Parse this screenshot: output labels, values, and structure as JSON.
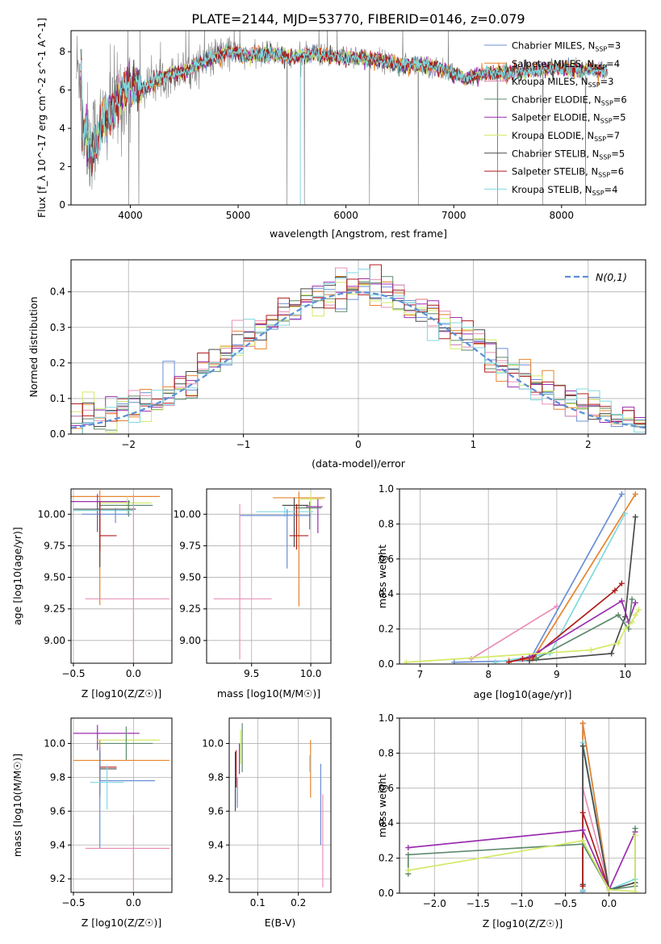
{
  "figure_title": "PLATE=2144, MJD=53770, FIBERID=0146, z=0.079",
  "colors": {
    "chab_miles": "#6a8fd6",
    "salp_miles": "#e8842c",
    "krou_miles": "#e98fb8",
    "chab_elodie": "#5f8a6e",
    "salp_elodie": "#9b2fae",
    "krou_elodie": "#d2ea68",
    "chab_stelib": "#4a4a4a",
    "salp_stelib": "#b01c1c",
    "krou_stelib": "#7fd8e0",
    "data": "#808080",
    "normal": "#5b8fd6"
  },
  "chart_data": [
    {
      "id": "spectrum",
      "type": "line",
      "xlabel": "wavelength [Angstrom, rest frame]",
      "ylabel": "Flux [f_λ 10^-17 erg cm^-2 s^-1 A^-1]",
      "xlim": [
        3450,
        8780
      ],
      "ylim": [
        0,
        9.1
      ],
      "xticks": [
        4000,
        5000,
        6000,
        7000,
        8000
      ],
      "yticks": [
        0,
        2,
        4,
        6,
        8
      ],
      "continuum": [
        [
          3550,
          4.1
        ],
        [
          3650,
          3.4
        ],
        [
          3800,
          4.8
        ],
        [
          3900,
          5.6
        ],
        [
          4000,
          6.3
        ],
        [
          4100,
          6.0
        ],
        [
          4300,
          6.7
        ],
        [
          4500,
          7.0
        ],
        [
          4700,
          7.5
        ],
        [
          4900,
          8.0
        ],
        [
          5100,
          7.8
        ],
        [
          5300,
          7.9
        ],
        [
          5500,
          7.7
        ],
        [
          5700,
          7.9
        ],
        [
          5900,
          7.7
        ],
        [
          6100,
          7.7
        ],
        [
          6300,
          7.6
        ],
        [
          6500,
          7.3
        ],
        [
          6700,
          7.3
        ],
        [
          6900,
          7.1
        ],
        [
          7100,
          6.6
        ],
        [
          7300,
          6.9
        ],
        [
          7500,
          6.9
        ],
        [
          7700,
          7.0
        ],
        [
          7900,
          7.1
        ],
        [
          8100,
          7.1
        ],
        [
          8300,
          7.1
        ],
        [
          8400,
          7.0
        ]
      ],
      "legend": [
        {
          "key": "chab_miles",
          "name": "Chabrier MILES",
          "n": "3"
        },
        {
          "key": "salp_miles",
          "name": "Salpeter MILES",
          "n": "4"
        },
        {
          "key": "krou_miles",
          "name": "Kroupa MILES",
          "n": "3"
        },
        {
          "key": "chab_elodie",
          "name": "Chabrier ELODIE",
          "n": "6"
        },
        {
          "key": "salp_elodie",
          "name": "Salpeter ELODIE",
          "n": "5"
        },
        {
          "key": "krou_elodie",
          "name": "Kroupa ELODIE",
          "n": "7"
        },
        {
          "key": "chab_stelib",
          "name": "Chabrier STELIB",
          "n": "5"
        },
        {
          "key": "salp_stelib",
          "name": "Salpeter STELIB",
          "n": "6"
        },
        {
          "key": "krou_stelib",
          "name": "Kroupa STELIB",
          "n": "4"
        }
      ]
    },
    {
      "id": "residuals",
      "type": "histogram",
      "xlabel": "(data-model)/error",
      "ylabel": "Normed distribution",
      "xlim": [
        -2.5,
        2.5
      ],
      "ylim": [
        0,
        0.49
      ],
      "xticks": [
        -2,
        -1,
        0,
        1,
        2
      ],
      "yticks": [
        0.0,
        0.1,
        0.2,
        0.3,
        0.4
      ],
      "normal_label": "N(0,1)",
      "bins": [
        -2.5,
        2.5,
        50
      ]
    },
    {
      "id": "age_vs_Z",
      "type": "errorbar",
      "xlabel": "Z [log10(Z/Z☉)]",
      "ylabel": "age [log10(age/yr)]",
      "xlim": [
        -0.52,
        0.32
      ],
      "ylim": [
        8.82,
        10.2
      ],
      "xticks": [
        -0.5,
        0.0
      ],
      "yticks": [
        9.0,
        9.25,
        9.5,
        9.75,
        10.0
      ],
      "points": [
        {
          "key": "salp_miles",
          "x": -0.28,
          "y": 10.14,
          "xerr": [
            0.48,
            0.5
          ],
          "yerr": [
            0.86,
            0.05
          ]
        },
        {
          "key": "salp_elodie",
          "x": -0.3,
          "y": 10.1,
          "xerr": [
            0.22,
            0.27
          ],
          "yerr": [
            0.24,
            0.06
          ]
        },
        {
          "key": "krou_elodie",
          "x": -0.05,
          "y": 10.09,
          "xerr": [
            0.24,
            0.2
          ],
          "yerr": [
            0.1,
            0.05
          ]
        },
        {
          "key": "chab_elodie",
          "x": -0.04,
          "y": 10.07,
          "xerr": [
            0.24,
            0.2
          ],
          "yerr": [
            0.09,
            0.04
          ]
        },
        {
          "key": "chab_stelib",
          "x": -0.28,
          "y": 10.04,
          "xerr": [
            0.22,
            0.3
          ],
          "yerr": [
            0.46,
            0.06
          ]
        },
        {
          "key": "krou_stelib",
          "x": -0.28,
          "y": 10.03,
          "xerr": [
            0.22,
            0.28
          ],
          "yerr": [
            0.05,
            0.03
          ]
        },
        {
          "key": "chab_miles",
          "x": -0.15,
          "y": 10.0,
          "xerr": [
            0.28,
            0.13
          ],
          "yerr": [
            0.07,
            0.05
          ]
        },
        {
          "key": "salp_stelib",
          "x": -0.28,
          "y": 9.83,
          "xerr": [
            0.0,
            0.14
          ],
          "yerr": [
            0.12,
            0.27
          ]
        },
        {
          "key": "krou_miles",
          "x": 0.0,
          "y": 9.33,
          "xerr": [
            0.4,
            0.3
          ],
          "yerr": [
            0.5,
            0.83
          ]
        }
      ]
    },
    {
      "id": "age_vs_mass",
      "type": "errorbar",
      "xlabel": "mass [log10(M/M☉)]",
      "ylabel": "",
      "xlim": [
        9.12,
        10.17
      ],
      "ylim": [
        8.82,
        10.2
      ],
      "xticks": [
        9.5,
        10.0
      ],
      "yticks": [
        9.0,
        9.25,
        9.5,
        9.75,
        10.0
      ],
      "points": [
        {
          "key": "salp_miles",
          "x": 9.9,
          "y": 10.13,
          "xerr": [
            0.22,
            0.22
          ],
          "yerr": [
            0.86,
            0.05
          ]
        },
        {
          "key": "krou_elodie",
          "x": 10.0,
          "y": 10.12,
          "xerr": [
            0.1,
            0.1
          ],
          "yerr": [
            0.1,
            0.05
          ]
        },
        {
          "key": "chab_stelib",
          "x": 9.86,
          "y": 10.07,
          "xerr": [
            0.1,
            0.12
          ],
          "yerr": [
            0.33,
            0.06
          ]
        },
        {
          "key": "salp_elodie",
          "x": 10.06,
          "y": 10.06,
          "xerr": [
            0.1,
            0.04
          ],
          "yerr": [
            0.21,
            0.06
          ]
        },
        {
          "key": "chab_elodie",
          "x": 9.99,
          "y": 10.05,
          "xerr": [
            0.12,
            0.1
          ],
          "yerr": [
            0.17,
            0.05
          ]
        },
        {
          "key": "krou_stelib",
          "x": 9.78,
          "y": 10.02,
          "xerr": [
            0.24,
            0.24
          ],
          "yerr": [
            0.04,
            0.04
          ]
        },
        {
          "key": "chab_miles",
          "x": 9.8,
          "y": 9.99,
          "xerr": [
            0.4,
            0.2
          ],
          "yerr": [
            0.42,
            0.05
          ]
        },
        {
          "key": "salp_stelib",
          "x": 9.88,
          "y": 9.83,
          "xerr": [
            0.06,
            0.1
          ],
          "yerr": [
            0.11,
            0.25
          ]
        },
        {
          "key": "krou_miles",
          "x": 9.4,
          "y": 9.33,
          "xerr": [
            0.22,
            0.27
          ],
          "yerr": [
            0.48,
            0.75
          ]
        }
      ]
    },
    {
      "id": "mass_weight_vs_age",
      "type": "line",
      "xlabel": "age [log10(age/yr)]",
      "ylabel": "mass weight",
      "xlim": [
        6.7,
        10.3
      ],
      "ylim": [
        0,
        1.0
      ],
      "xticks": [
        7,
        8,
        9,
        10
      ],
      "yticks": [
        0.0,
        0.2,
        0.4,
        0.6,
        0.8,
        1.0
      ],
      "series": [
        {
          "key": "krou_miles",
          "x": [
            7.75,
            9.0
          ],
          "y": [
            0.03,
            0.33
          ]
        },
        {
          "key": "chab_miles",
          "x": [
            7.5,
            8.6,
            9.95
          ],
          "y": [
            0.01,
            0.02,
            0.97
          ]
        },
        {
          "key": "salp_miles",
          "x": [
            8.3,
            8.65,
            10.15
          ],
          "y": [
            0.02,
            0.03,
            0.97
          ]
        },
        {
          "key": "krou_stelib",
          "x": [
            8.1,
            8.9,
            10.0
          ],
          "y": [
            0.01,
            0.06,
            0.86
          ]
        },
        {
          "key": "chab_stelib",
          "x": [
            8.6,
            9.8,
            10.0,
            10.15
          ],
          "y": [
            0.02,
            0.06,
            0.27,
            0.84
          ]
        },
        {
          "key": "salp_stelib",
          "x": [
            8.3,
            8.5,
            8.65,
            9.85,
            9.95
          ],
          "y": [
            0.01,
            0.03,
            0.04,
            0.42,
            0.46
          ]
        },
        {
          "key": "salp_elodie",
          "x": [
            8.6,
            9.95,
            10.05,
            10.15
          ],
          "y": [
            0.04,
            0.36,
            0.24,
            0.35
          ]
        },
        {
          "key": "chab_elodie",
          "x": [
            8.7,
            9.9,
            10.05,
            10.1
          ],
          "y": [
            0.03,
            0.28,
            0.2,
            0.37
          ]
        },
        {
          "key": "krou_elodie",
          "x": [
            6.8,
            9.5,
            9.9,
            10.0,
            10.1,
            10.15,
            10.2
          ],
          "y": [
            0.01,
            0.08,
            0.12,
            0.2,
            0.24,
            0.28,
            0.31
          ]
        }
      ]
    },
    {
      "id": "mass_vs_Z",
      "type": "errorbar",
      "xlabel": "Z [log10(Z/Z☉)]",
      "ylabel": "mass [log10(M/M☉)]",
      "xlim": [
        -0.52,
        0.32
      ],
      "ylim": [
        9.12,
        10.15
      ],
      "xticks": [
        -0.5,
        0.0
      ],
      "yticks": [
        9.2,
        9.4,
        9.6,
        9.8,
        10.0
      ],
      "points": [
        {
          "key": "salp_elodie",
          "x": -0.3,
          "y": 10.06,
          "xerr": [
            0.2,
            0.35
          ],
          "yerr": [
            0.1,
            0.05
          ]
        },
        {
          "key": "krou_elodie",
          "x": -0.06,
          "y": 10.02,
          "xerr": [
            0.24,
            0.28
          ],
          "yerr": [
            0.1,
            0.08
          ]
        },
        {
          "key": "chab_elodie",
          "x": -0.06,
          "y": 10.0,
          "xerr": [
            0.24,
            0.22
          ],
          "yerr": [
            0.1,
            0.1
          ]
        },
        {
          "key": "salp_miles",
          "x": -0.28,
          "y": 9.9,
          "xerr": [
            0.22,
            0.58
          ],
          "yerr": [
            0.22,
            0.12
          ]
        },
        {
          "key": "salp_stelib",
          "x": -0.28,
          "y": 9.86,
          "xerr": [
            0.0,
            0.14
          ],
          "yerr": [
            0.1,
            0.1
          ]
        },
        {
          "key": "chab_stelib",
          "x": -0.28,
          "y": 9.85,
          "xerr": [
            0.0,
            0.14
          ],
          "yerr": [
            0.15,
            0.1
          ]
        },
        {
          "key": "chab_miles",
          "x": -0.28,
          "y": 9.78,
          "xerr": [
            0.0,
            0.46
          ],
          "yerr": [
            0.4,
            0.2
          ]
        },
        {
          "key": "krou_stelib",
          "x": -0.22,
          "y": 9.77,
          "xerr": [
            0.14,
            0.14
          ],
          "yerr": [
            0.16,
            0.1
          ]
        },
        {
          "key": "krou_miles",
          "x": 0.0,
          "y": 9.38,
          "xerr": [
            0.4,
            0.3
          ],
          "yerr": [
            0.25,
            0.2
          ]
        }
      ]
    },
    {
      "id": "mass_vs_ebv",
      "type": "errorbar",
      "xlabel": "E(B-V)",
      "ylabel": "",
      "xlim": [
        0.03,
        0.28
      ],
      "ylim": [
        9.12,
        10.15
      ],
      "xticks": [
        0.1,
        0.2
      ],
      "yticks": [
        9.2,
        9.4,
        9.6,
        9.8,
        10.0
      ],
      "points": [
        {
          "key": "chab_elodie",
          "x": 0.062,
          "y": 10.0,
          "xerr": [
            0,
            0
          ],
          "yerr": [
            0.17,
            0.12
          ]
        },
        {
          "key": "krou_elodie",
          "x": 0.058,
          "y": 9.98,
          "xerr": [
            0,
            0
          ],
          "yerr": [
            0.1,
            0.1
          ]
        },
        {
          "key": "salp_elodie",
          "x": 0.055,
          "y": 9.9,
          "xerr": [
            0,
            0
          ],
          "yerr": [
            0.08,
            0.1
          ]
        },
        {
          "key": "salp_stelib",
          "x": 0.047,
          "y": 9.86,
          "xerr": [
            0,
            0
          ],
          "yerr": [
            0.12,
            0.1
          ]
        },
        {
          "key": "chab_stelib",
          "x": 0.045,
          "y": 9.8,
          "xerr": [
            0,
            0
          ],
          "yerr": [
            0.2,
            0.15
          ]
        },
        {
          "key": "chab_miles",
          "x": 0.05,
          "y": 9.72,
          "xerr": [
            0,
            0
          ],
          "yerr": [
            0.1,
            0.08
          ]
        },
        {
          "key": "salp_miles",
          "x": 0.23,
          "y": 9.9,
          "xerr": [
            0,
            0
          ],
          "yerr": [
            0.22,
            0.12
          ]
        },
        {
          "key": "krou_stelib",
          "x": 0.228,
          "y": 9.88,
          "xerr": [
            0,
            0
          ],
          "yerr": [
            0.05,
            0.05
          ]
        },
        {
          "key": "chab_miles",
          "x": 0.255,
          "y": 9.6,
          "xerr": [
            0,
            0
          ],
          "yerr": [
            0.2,
            0.28
          ]
        },
        {
          "key": "krou_miles",
          "x": 0.26,
          "y": 9.4,
          "xerr": [
            0,
            0
          ],
          "yerr": [
            0.25,
            0.3
          ]
        }
      ]
    },
    {
      "id": "mass_weight_vs_Z",
      "type": "line",
      "xlabel": "Z [log10(Z/Z☉)]",
      "ylabel": "mass weight",
      "xlim": [
        -2.4,
        0.42
      ],
      "ylim": [
        0,
        1.0
      ],
      "xticks": [
        -2.0,
        -1.5,
        -1.0,
        -0.5,
        0.0
      ],
      "yticks": [
        0.0,
        0.2,
        0.4,
        0.6,
        0.8,
        1.0
      ],
      "series": [
        {
          "key": "chab_miles",
          "x": [
            -0.3,
            -0.3,
            0.0
          ],
          "y": [
            0.01,
            0.97,
            0.02
          ]
        },
        {
          "key": "salp_miles",
          "x": [
            -0.3,
            -0.3,
            0.0
          ],
          "y": [
            0.02,
            0.97,
            0.02
          ]
        },
        {
          "key": "krou_miles",
          "x": [
            -0.3,
            -0.3,
            0.0
          ],
          "y": [
            0.05,
            0.6,
            0.03
          ]
        },
        {
          "key": "krou_stelib",
          "x": [
            -0.3,
            -0.3,
            0.0,
            0.3
          ],
          "y": [
            0.02,
            0.86,
            0.02,
            0.08
          ]
        },
        {
          "key": "chab_stelib",
          "x": [
            -0.3,
            -0.3,
            0.0,
            0.3
          ],
          "y": [
            0.05,
            0.84,
            0.02,
            0.06
          ]
        },
        {
          "key": "salp_stelib",
          "x": [
            -0.3,
            -0.3,
            0.0
          ],
          "y": [
            0.04,
            0.46,
            0.02
          ]
        },
        {
          "key": "salp_elodie",
          "x": [
            -2.3,
            -0.3,
            0.0,
            0.3
          ],
          "y": [
            0.26,
            0.36,
            0.02,
            0.35
          ]
        },
        {
          "key": "chab_elodie",
          "x": [
            -2.3,
            -2.3,
            -0.3,
            0.0,
            0.3,
            0.3
          ],
          "y": [
            0.11,
            0.22,
            0.28,
            0.02,
            0.04,
            0.37
          ]
        },
        {
          "key": "krou_elodie",
          "x": [
            -2.3,
            -0.3,
            0.0,
            0.3,
            0.3
          ],
          "y": [
            0.13,
            0.3,
            0.02,
            0.01,
            0.33
          ]
        }
      ]
    }
  ]
}
